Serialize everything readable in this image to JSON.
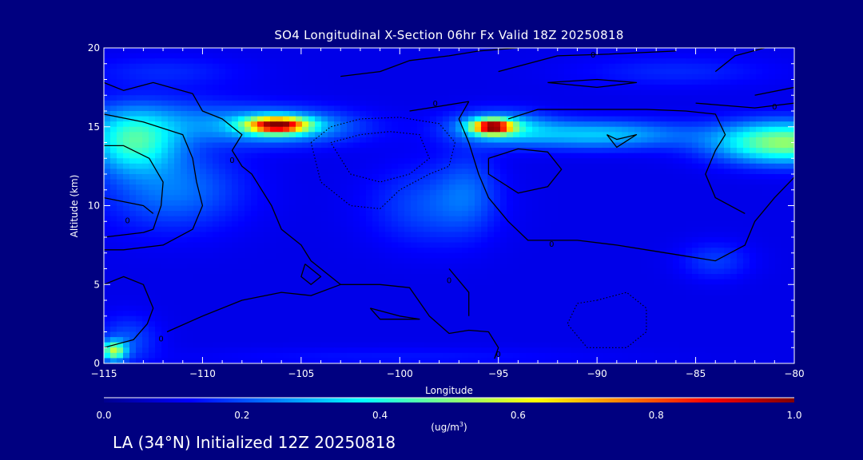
{
  "chart_data": {
    "type": "heatmap",
    "title": "SO4 Longitudinal X-Section 06hr  Fx Valid 18Z 20250818",
    "xlabel": "Longitude",
    "ylabel": "Altitude (km)",
    "xlim": [
      -115,
      -80
    ],
    "ylim": [
      0,
      20
    ],
    "xticks": [
      -115,
      -110,
      -105,
      -100,
      -95,
      -90,
      -85,
      -80
    ],
    "xtick_labels": [
      "−115",
      "−110",
      "−105",
      "−100",
      "−95",
      "−90",
      "−85",
      "−80"
    ],
    "yticks": [
      0,
      5,
      10,
      15,
      20
    ],
    "ytick_labels": [
      "0",
      "5",
      "10",
      "15",
      "20"
    ],
    "colorbar": {
      "min": 0.0,
      "max": 1.0,
      "ticks": [
        0.0,
        0.2,
        0.4,
        0.6,
        0.8,
        1.0
      ],
      "tick_labels": [
        "0.0",
        "0.2",
        "0.4",
        "0.6",
        "0.8",
        "1.0"
      ],
      "units_base": "(ug/m",
      "units_exp": "3",
      "units_close": ")",
      "colors": [
        "#00008f",
        "#0000ff",
        "#0080ff",
        "#00ffff",
        "#80ff80",
        "#ffff00",
        "#ff8000",
        "#ff0000",
        "#800000"
      ]
    },
    "background_value": 0.1,
    "plumes": [
      {
        "lon": -106.2,
        "alt": 15.1,
        "sx": 1.5,
        "sy": 0.5,
        "v": 0.72
      },
      {
        "lon": -106.0,
        "alt": 15.0,
        "sx": 3.8,
        "sy": 1.1,
        "v": 0.22
      },
      {
        "lon": -95.3,
        "alt": 15.0,
        "sx": 1.0,
        "sy": 0.45,
        "v": 0.72
      },
      {
        "lon": -95.0,
        "alt": 15.0,
        "sx": 2.5,
        "sy": 1.0,
        "v": 0.22
      },
      {
        "lon": -90.0,
        "alt": 14.5,
        "sx": 4.5,
        "sy": 0.9,
        "v": 0.22
      },
      {
        "lon": -80.5,
        "alt": 14.0,
        "sx": 3.5,
        "sy": 1.3,
        "v": 0.42
      },
      {
        "lon": -113.5,
        "alt": 14.0,
        "sx": 2.2,
        "sy": 1.8,
        "v": 0.3
      },
      {
        "lon": -112.0,
        "alt": 15.5,
        "sx": 5.0,
        "sy": 1.5,
        "v": 0.1
      },
      {
        "lon": -111.5,
        "alt": 11.0,
        "sx": 3.5,
        "sy": 2.5,
        "v": 0.14
      },
      {
        "lon": -98.5,
        "alt": 10.0,
        "sx": 3.0,
        "sy": 2.5,
        "v": 0.1
      },
      {
        "lon": -96.5,
        "alt": 11.0,
        "sx": 1.5,
        "sy": 2.5,
        "v": 0.08
      },
      {
        "lon": -84.0,
        "alt": 6.5,
        "sx": 1.8,
        "sy": 1.2,
        "v": 0.08
      },
      {
        "lon": -114.5,
        "alt": 0.8,
        "sx": 0.6,
        "sy": 0.6,
        "v": 0.4
      },
      {
        "lon": -113.8,
        "alt": 1.5,
        "sx": 1.5,
        "sy": 1.5,
        "v": 0.1
      },
      {
        "lon": -112.0,
        "alt": 18.5,
        "sx": 4.0,
        "sy": 1.0,
        "v": 0.06
      },
      {
        "lon": -86.0,
        "alt": 18.5,
        "sx": 5.0,
        "sy": 1.0,
        "v": 0.06
      },
      {
        "lon": -100.0,
        "alt": 0.4,
        "sx": 10.0,
        "sy": 0.6,
        "v": 0.04
      }
    ],
    "contours": [
      {
        "style": "solid",
        "points": [
          [
            -115,
            17.8
          ],
          [
            -114,
            17.3
          ],
          [
            -112.5,
            17.8
          ],
          [
            -110.5,
            17.1
          ],
          [
            -110,
            16.0
          ],
          [
            -109,
            15.5
          ],
          [
            -108,
            14.5
          ],
          [
            -108.5,
            13.5
          ],
          [
            -108,
            12.5
          ],
          [
            -107.5,
            12.0
          ],
          [
            -106.5,
            10.0
          ],
          [
            -106,
            8.5
          ],
          [
            -105,
            7.5
          ],
          [
            -104.5,
            6.5
          ],
          [
            -103,
            5.0
          ],
          [
            -101,
            5.0
          ],
          [
            -99.5,
            4.8
          ],
          [
            -98.5,
            3.0
          ],
          [
            -97.5,
            1.9
          ],
          [
            -96.5,
            2.1
          ],
          [
            -95.5,
            2.0
          ],
          [
            -95,
            1.0
          ],
          [
            -95.2,
            0.3
          ]
        ]
      },
      {
        "style": "solid",
        "points": [
          [
            -115,
            13.8
          ],
          [
            -114,
            13.8
          ],
          [
            -112.7,
            13.0
          ],
          [
            -112.0,
            11.5
          ],
          [
            -112.1,
            10.0
          ],
          [
            -112.5,
            8.5
          ],
          [
            -113.0,
            8.3
          ],
          [
            -115,
            8.0
          ]
        ]
      },
      {
        "style": "solid",
        "points": [
          [
            -115,
            15.8
          ],
          [
            -113,
            15.3
          ],
          [
            -111.0,
            14.5
          ],
          [
            -110.5,
            13.0
          ],
          [
            -110.3,
            11.5
          ],
          [
            -110.0,
            10.0
          ],
          [
            -110.5,
            8.5
          ],
          [
            -112,
            7.5
          ],
          [
            -114,
            7.2
          ],
          [
            -115,
            7.2
          ]
        ]
      },
      {
        "style": "solid",
        "points": [
          [
            -103,
            18.2
          ],
          [
            -101,
            18.5
          ],
          [
            -99.5,
            19.2
          ],
          [
            -97.5,
            19.5
          ],
          [
            -96,
            19.8
          ],
          [
            -94,
            20.0
          ]
        ]
      },
      {
        "style": "solid",
        "points": [
          [
            -99.5,
            16.0
          ],
          [
            -98,
            16.3
          ],
          [
            -96.5,
            16.6
          ]
        ]
      },
      {
        "style": "solid",
        "points": [
          [
            -96.5,
            16.6
          ],
          [
            -97.0,
            15.5
          ],
          [
            -96.5,
            14.0
          ],
          [
            -96.0,
            12.0
          ],
          [
            -95.5,
            10.5
          ],
          [
            -94.5,
            9.0
          ],
          [
            -93.5,
            7.8
          ],
          [
            -91.0,
            7.8
          ],
          [
            -89.0,
            7.5
          ],
          [
            -87.5,
            7.2
          ],
          [
            -85.5,
            6.8
          ],
          [
            -84.0,
            6.5
          ],
          [
            -82.5,
            7.5
          ],
          [
            -82.0,
            9.0
          ],
          [
            -81.0,
            10.5
          ],
          [
            -80.0,
            11.8
          ]
        ]
      },
      {
        "style": "solid",
        "points": [
          [
            -95.5,
            13.0
          ],
          [
            -94.0,
            13.6
          ],
          [
            -92.5,
            13.4
          ],
          [
            -91.8,
            12.3
          ],
          [
            -92.5,
            11.2
          ],
          [
            -94.0,
            10.8
          ],
          [
            -95.5,
            12.0
          ],
          [
            -95.5,
            13.0
          ]
        ]
      },
      {
        "style": "solid",
        "points": [
          [
            -94.5,
            15.5
          ],
          [
            -93.0,
            16.1
          ],
          [
            -90.5,
            16.1
          ],
          [
            -87.5,
            16.1
          ],
          [
            -85.5,
            16.0
          ],
          [
            -84.0,
            15.8
          ],
          [
            -83.5,
            14.5
          ],
          [
            -84.0,
            13.5
          ],
          [
            -84.5,
            12.0
          ],
          [
            -84.0,
            10.5
          ],
          [
            -82.5,
            9.5
          ]
        ]
      },
      {
        "style": "solid",
        "points": [
          [
            -89.5,
            14.5
          ],
          [
            -89.0,
            14.2
          ],
          [
            -88.0,
            14.5
          ],
          [
            -89.0,
            13.7
          ],
          [
            -89.5,
            14.5
          ]
        ]
      },
      {
        "style": "solid",
        "points": [
          [
            -92.5,
            17.8
          ],
          [
            -90.0,
            18.0
          ],
          [
            -88.0,
            17.8
          ],
          [
            -90.0,
            17.5
          ],
          [
            -92.5,
            17.8
          ]
        ]
      },
      {
        "style": "solid",
        "points": [
          [
            -95.0,
            18.5
          ],
          [
            -92.0,
            19.5
          ],
          [
            -89.5,
            19.6
          ],
          [
            -86.0,
            19.8
          ]
        ]
      },
      {
        "style": "solid",
        "points": [
          [
            -82.0,
            17.0
          ],
          [
            -80.0,
            17.5
          ]
        ]
      },
      {
        "style": "solid",
        "points": [
          [
            -84.0,
            18.5
          ],
          [
            -83.0,
            19.5
          ],
          [
            -81.5,
            20.0
          ]
        ]
      },
      {
        "style": "solid",
        "points": [
          [
            -85.0,
            16.5
          ],
          [
            -82.0,
            16.2
          ],
          [
            -80.0,
            16.5
          ]
        ]
      },
      {
        "style": "solid",
        "points": [
          [
            -115,
            5.0
          ],
          [
            -114,
            5.5
          ],
          [
            -113,
            5.0
          ],
          [
            -112.5,
            3.5
          ],
          [
            -112.8,
            2.5
          ],
          [
            -113.5,
            1.5
          ],
          [
            -115,
            1.0
          ]
        ]
      },
      {
        "style": "solid",
        "points": [
          [
            -111.8,
            2.0
          ],
          [
            -110,
            3.0
          ],
          [
            -108,
            4.0
          ],
          [
            -106,
            4.5
          ],
          [
            -104.5,
            4.3
          ],
          [
            -103.0,
            5.0
          ]
        ]
      },
      {
        "style": "solid",
        "points": [
          [
            -104.8,
            6.3
          ],
          [
            -104.0,
            5.5
          ],
          [
            -104.5,
            5.0
          ],
          [
            -105.0,
            5.5
          ],
          [
            -104.8,
            6.3
          ]
        ]
      },
      {
        "style": "solid",
        "points": [
          [
            -101.5,
            3.5
          ],
          [
            -100.0,
            3.0
          ],
          [
            -99.0,
            2.8
          ],
          [
            -101.0,
            2.8
          ],
          [
            -101.5,
            3.5
          ]
        ]
      },
      {
        "style": "solid",
        "points": [
          [
            -97.5,
            6.0
          ],
          [
            -96.5,
            4.5
          ],
          [
            -96.5,
            3.0
          ]
        ]
      },
      {
        "style": "solid",
        "points": [
          [
            -115,
            10.5
          ],
          [
            -113.0,
            10.0
          ],
          [
            -112.5,
            9.5
          ]
        ]
      },
      {
        "style": "dotted",
        "points": [
          [
            -104.5,
            14.0
          ],
          [
            -103.5,
            15.0
          ],
          [
            -102.0,
            15.5
          ],
          [
            -100.0,
            15.6
          ],
          [
            -98.0,
            15.2
          ],
          [
            -97.2,
            14.0
          ],
          [
            -97.5,
            12.5
          ],
          [
            -98.5,
            12.0
          ],
          [
            -100.0,
            11.0
          ],
          [
            -101.0,
            9.8
          ],
          [
            -102.5,
            10.0
          ],
          [
            -104.0,
            11.5
          ],
          [
            -104.5,
            14.0
          ]
        ]
      },
      {
        "style": "dotted",
        "points": [
          [
            -103.5,
            14.0
          ],
          [
            -102.0,
            14.5
          ],
          [
            -100.5,
            14.7
          ],
          [
            -99.0,
            14.5
          ],
          [
            -98.5,
            13.0
          ],
          [
            -99.5,
            12.0
          ],
          [
            -101.0,
            11.5
          ],
          [
            -102.5,
            12.0
          ],
          [
            -103.5,
            14.0
          ]
        ]
      },
      {
        "style": "dotted",
        "points": [
          [
            -90.0,
            4.0
          ],
          [
            -88.5,
            4.5
          ],
          [
            -87.5,
            3.5
          ],
          [
            -87.5,
            2.0
          ],
          [
            -88.5,
            1.0
          ],
          [
            -90.5,
            1.0
          ],
          [
            -91.5,
            2.5
          ],
          [
            -91.0,
            3.8
          ],
          [
            -90.0,
            4.0
          ]
        ]
      }
    ],
    "contour_labels": [
      {
        "lon": -98.2,
        "alt": 16.5,
        "text": "0"
      },
      {
        "lon": -90.2,
        "alt": 19.6,
        "text": "0"
      },
      {
        "lon": -81.0,
        "alt": 16.3,
        "text": "0"
      },
      {
        "lon": -108.5,
        "alt": 12.9,
        "text": "0"
      },
      {
        "lon": -113.8,
        "alt": 9.1,
        "text": "0"
      },
      {
        "lon": -92.3,
        "alt": 7.6,
        "text": "0"
      },
      {
        "lon": -97.5,
        "alt": 5.3,
        "text": "0"
      },
      {
        "lon": -95.0,
        "alt": 0.6,
        "text": "0"
      },
      {
        "lon": -112.1,
        "alt": 1.6,
        "text": "0"
      }
    ]
  },
  "footer": "LA (34°N) Initialized 12Z 20250818"
}
